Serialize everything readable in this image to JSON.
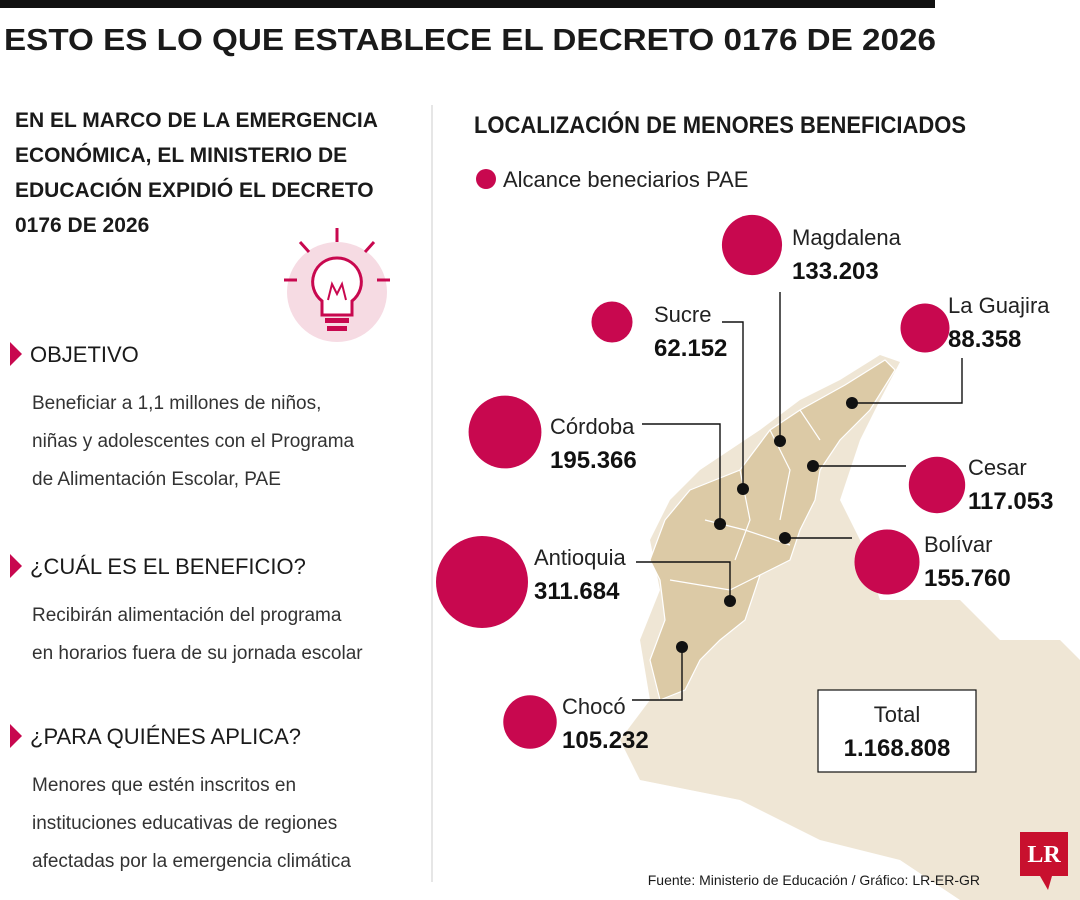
{
  "header": {
    "title": "ESTO ES LO QUE ESTABLECE EL DECRETO 0176 DE 2026"
  },
  "intro": [
    "EN EL MARCO DE LA EMERGENCIA",
    "ECONÓMICA, EL MINISTERIO DE",
    "EDUCACIÓN EXPIDIÓ EL DECRETO",
    "0176 DE 2026"
  ],
  "sections": [
    {
      "heading": "OBJETIVO",
      "text": [
        "Beneficiar a 1,1 millones de niños,",
        "niñas y adolescentes con el Programa",
        "de Alimentación Escolar, PAE"
      ]
    },
    {
      "heading": "¿CUÁL ES EL BENEFICIO?",
      "text": [
        "Recibirán alimentación del programa",
        "en horarios fuera de su jornada escolar"
      ]
    },
    {
      "heading": "¿PARA QUIÉNES APLICA?",
      "text": [
        "Menores que estén inscritos en",
        "instituciones educativas de regiones",
        "afectadas por la emergencia climática"
      ]
    }
  ],
  "map": {
    "title": "LOCALIZACIÓN DE MENORES BENEFICIADOS",
    "legend": "Alcance beneciarios PAE",
    "color": "#c8084f",
    "regions": [
      {
        "name": "Magdalena",
        "value": 133203,
        "value_label": "133.203"
      },
      {
        "name": "Sucre",
        "value": 62152,
        "value_label": "62.152"
      },
      {
        "name": "La Guajira",
        "value": 88358,
        "value_label": "88.358"
      },
      {
        "name": "Córdoba",
        "value": 195366,
        "value_label": "195.366"
      },
      {
        "name": "Cesar",
        "value": 117053,
        "value_label": "117.053"
      },
      {
        "name": "Antioquia",
        "value": 311684,
        "value_label": "311.684"
      },
      {
        "name": "Bolívar",
        "value": 155760,
        "value_label": "155.760"
      },
      {
        "name": "Chocó",
        "value": 105232,
        "value_label": "105.232"
      }
    ],
    "total": {
      "label": "Total",
      "value": "1.168.808"
    }
  },
  "footer": {
    "source": "Fuente: Ministerio de Educación / Gráfico: LR-ER-GR",
    "logo": "LR"
  }
}
